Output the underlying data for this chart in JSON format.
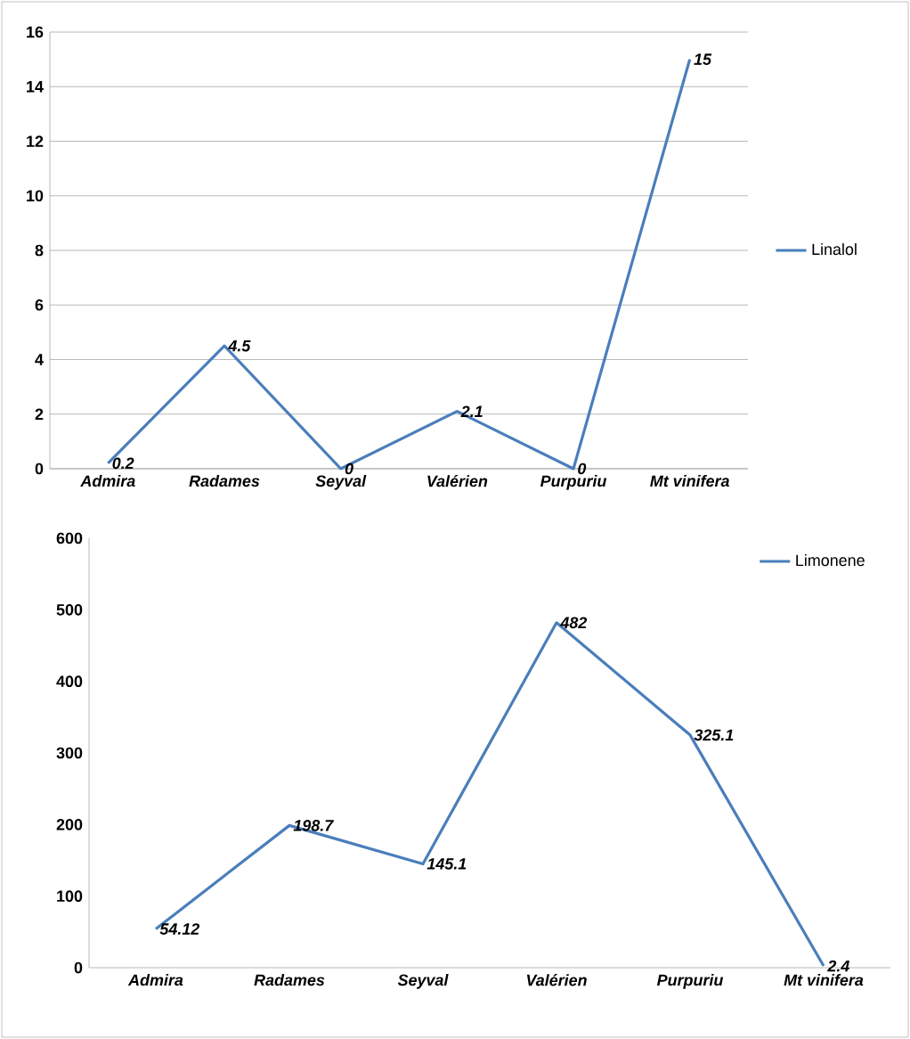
{
  "chart_data": [
    {
      "type": "line",
      "categories": [
        "Admira",
        "Radames",
        "Seyval",
        "Valérien",
        "Purpuriu",
        "Mt vinifera"
      ],
      "series": [
        {
          "name": "Linalol",
          "color": "#4a7ebb",
          "values": [
            0.2,
            4.5,
            0,
            2.1,
            0,
            15
          ]
        }
      ],
      "ylim": [
        0,
        16
      ],
      "yticks": [
        0,
        2,
        4,
        6,
        8,
        10,
        12,
        14,
        16
      ],
      "grid": "y",
      "legend": "right",
      "data_labels": true,
      "marker": "none",
      "line_style": "solid"
    },
    {
      "type": "line",
      "categories": [
        "Admira",
        "Radames",
        "Seyval",
        "Valérien",
        "Purpuriu",
        "Mt vinifera"
      ],
      "series": [
        {
          "name": "Limonene",
          "color": "#4a7ebb",
          "values": [
            54.12,
            198.7,
            145.1,
            482,
            325.1,
            2.4
          ]
        }
      ],
      "ylim": [
        0,
        600
      ],
      "yticks": [
        0,
        100,
        200,
        300,
        400,
        500,
        600
      ],
      "legend": "top right",
      "data_labels": true,
      "marker": "none",
      "line_style": "solid"
    }
  ]
}
